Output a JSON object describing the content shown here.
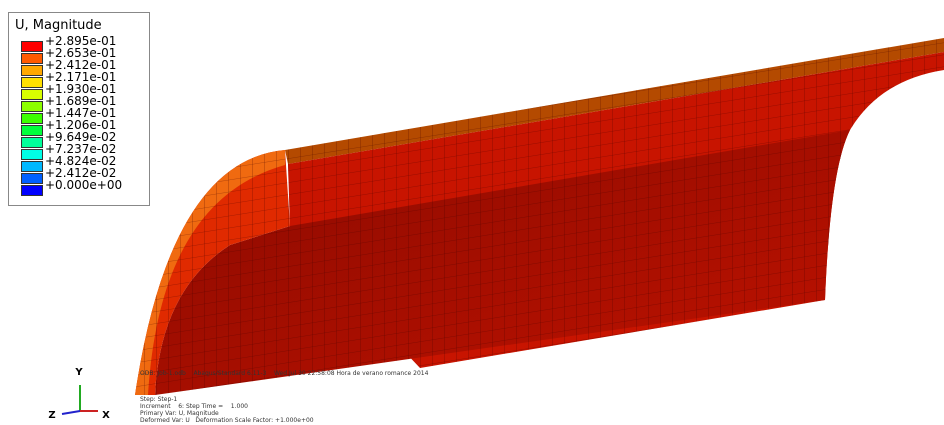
{
  "legend": {
    "title": "U, Magnitude",
    "labels": [
      "+2.895e-01",
      "+2.653e-01",
      "+2.412e-01",
      "+2.171e-01",
      "+1.930e-01",
      "+1.689e-01",
      "+1.447e-01",
      "+1.206e-01",
      "+9.649e-02",
      "+7.237e-02",
      "+4.824e-02",
      "+2.412e-02",
      "+0.000e+00"
    ],
    "colors": [
      "#ff0000",
      "#ff5a00",
      "#ffa800",
      "#ffe000",
      "#d8ff00",
      "#8cff00",
      "#3cff00",
      "#00ff3c",
      "#00ff9a",
      "#00ffe6",
      "#00b8ff",
      "#0060ff",
      "#0000ff"
    ]
  },
  "triad": {
    "y": "Y",
    "z": "Z",
    "x": "X"
  },
  "info_top": [
    "ODB: Job-1.odb    Abaqus/Standard 6.11-3    Wed Jul 30 22:58:08 Hora de verano romance 2014"
  ],
  "info_bottom": [
    "Step: Step-1",
    "Increment    6: Step Time =    1.000",
    "Primary Var: U, Magnitude",
    "Deformed Var: U   Deformation Scale Factor: +1.000e+00"
  ]
}
